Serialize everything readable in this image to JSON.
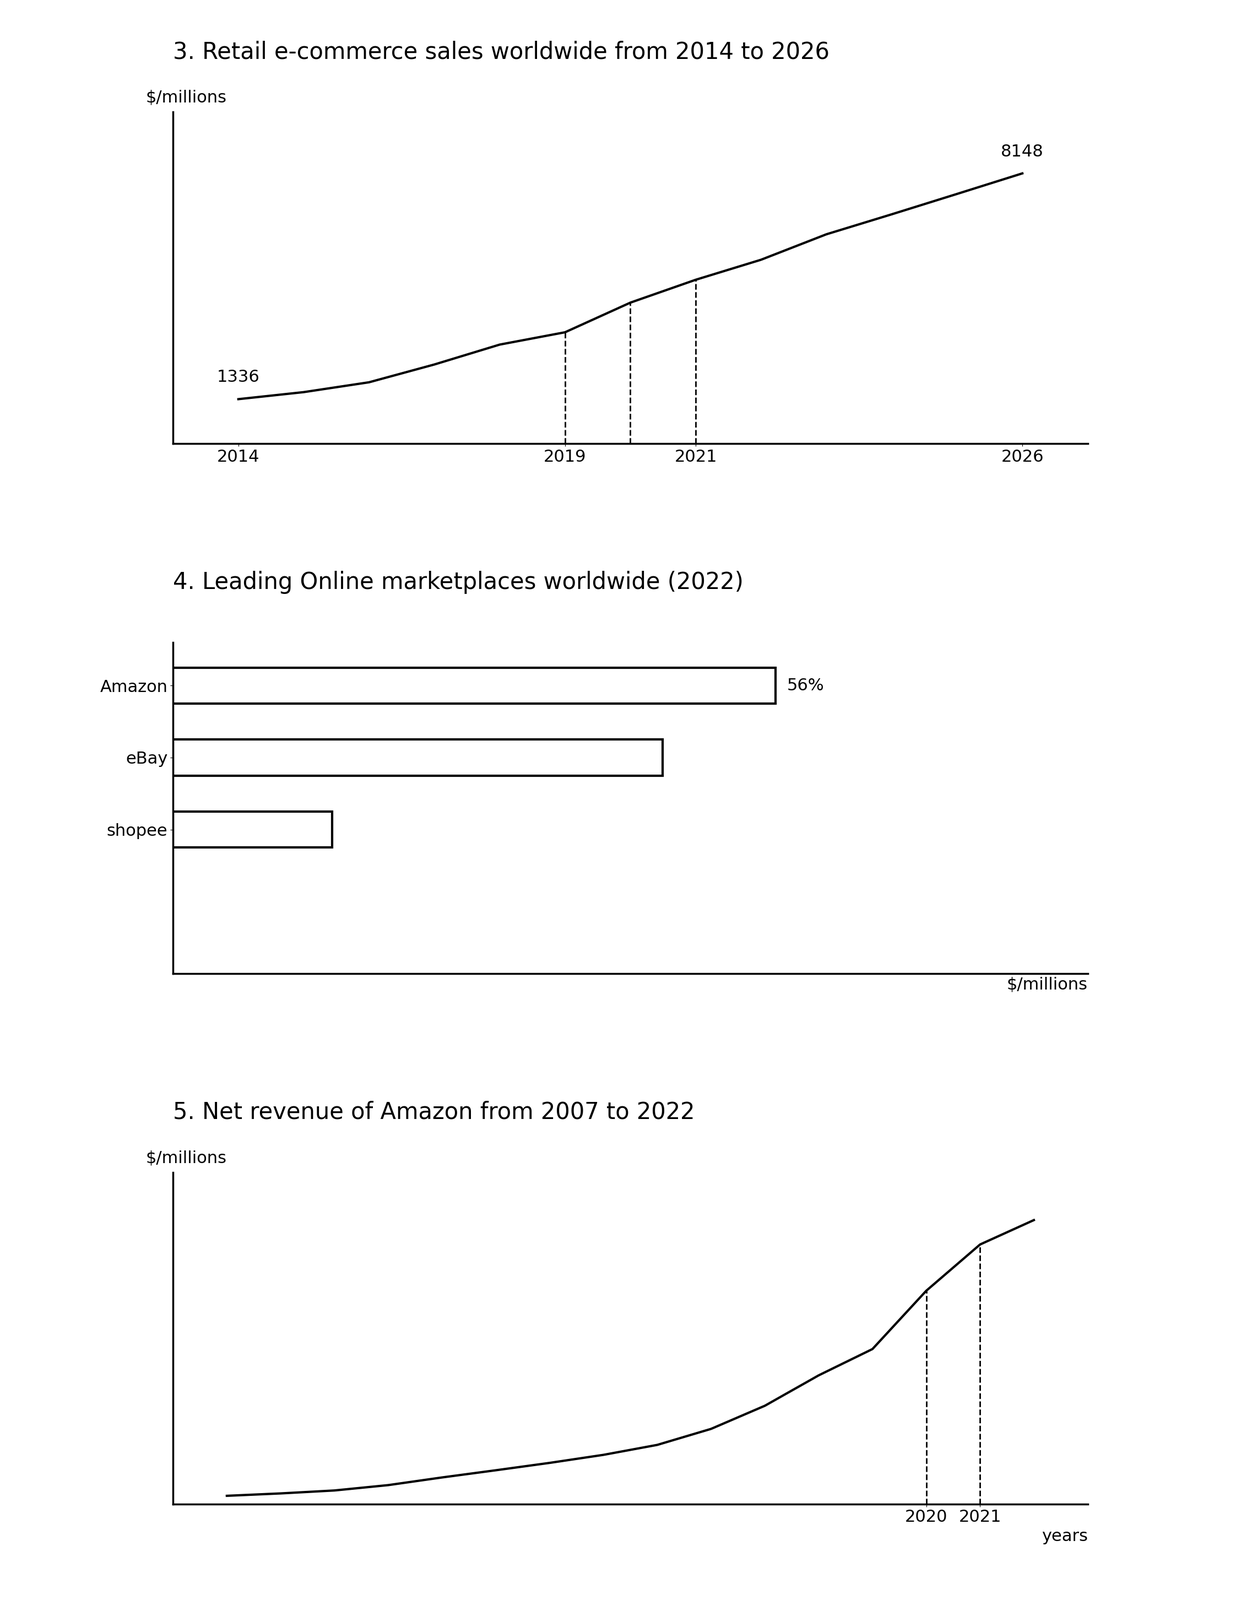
{
  "chart_data": [
    {
      "type": "line",
      "title": "3. Retail e-commerce sales worldwide from 2014 to 2026",
      "y_label": "$/millions",
      "x": [
        2014,
        2015,
        2016,
        2017,
        2018,
        2019,
        2020,
        2021,
        2022,
        2023,
        2024,
        2025,
        2026
      ],
      "values": [
        1336,
        1548,
        1845,
        2382,
        2982,
        3354,
        4248,
        4938,
        5542,
        6310,
        6913,
        7528,
        8148
      ],
      "value_labels": [
        "1336",
        null,
        null,
        null,
        null,
        null,
        null,
        null,
        null,
        null,
        null,
        null,
        "8148"
      ],
      "data_labels": true,
      "reference_lines_x": [
        2019,
        2020,
        2021
      ],
      "color": "#000000",
      "xlim": [
        2013,
        2027
      ],
      "xticks": [
        2014,
        2019,
        2021,
        2026
      ],
      "ylim": [
        0,
        10000
      ],
      "yticks": [],
      "tick_labels": "x"
    },
    {
      "type": "bar",
      "title": "4. Leading Online marketplaces worldwide (2022)",
      "x_label": "$/millions",
      "orientation": "horizontal",
      "categories": [
        "Amazon",
        "eBay",
        "shopee"
      ],
      "values": [
        56,
        45.5,
        14.8
      ],
      "value_labels": [
        "56%",
        null,
        null
      ],
      "data_labels": true,
      "color": "#000000",
      "xlim": [
        0,
        85
      ],
      "xticks": [],
      "tick_labels": "y"
    },
    {
      "type": "line",
      "title": "5. Net revenue of Amazon from 2007 to 2022",
      "y_label": "$/millions",
      "x_label": "years",
      "x": [
        2007,
        2008,
        2009,
        2010,
        2011,
        2012,
        2013,
        2014,
        2015,
        2016,
        2017,
        2018,
        2019,
        2020,
        2021,
        2022
      ],
      "values": [
        14835,
        19166,
        24509,
        34204,
        48077,
        61093,
        74452,
        88988,
        107006,
        135987,
        177866,
        232887,
        280522,
        386064,
        469822,
        513983
      ],
      "reference_lines_x": [
        2020,
        2021
      ],
      "color": "#000000",
      "xlim": [
        2006,
        2023
      ],
      "xticks": [
        2020,
        2021
      ],
      "ylim": [
        0,
        600000
      ],
      "yticks": [],
      "tick_labels": "x"
    }
  ]
}
